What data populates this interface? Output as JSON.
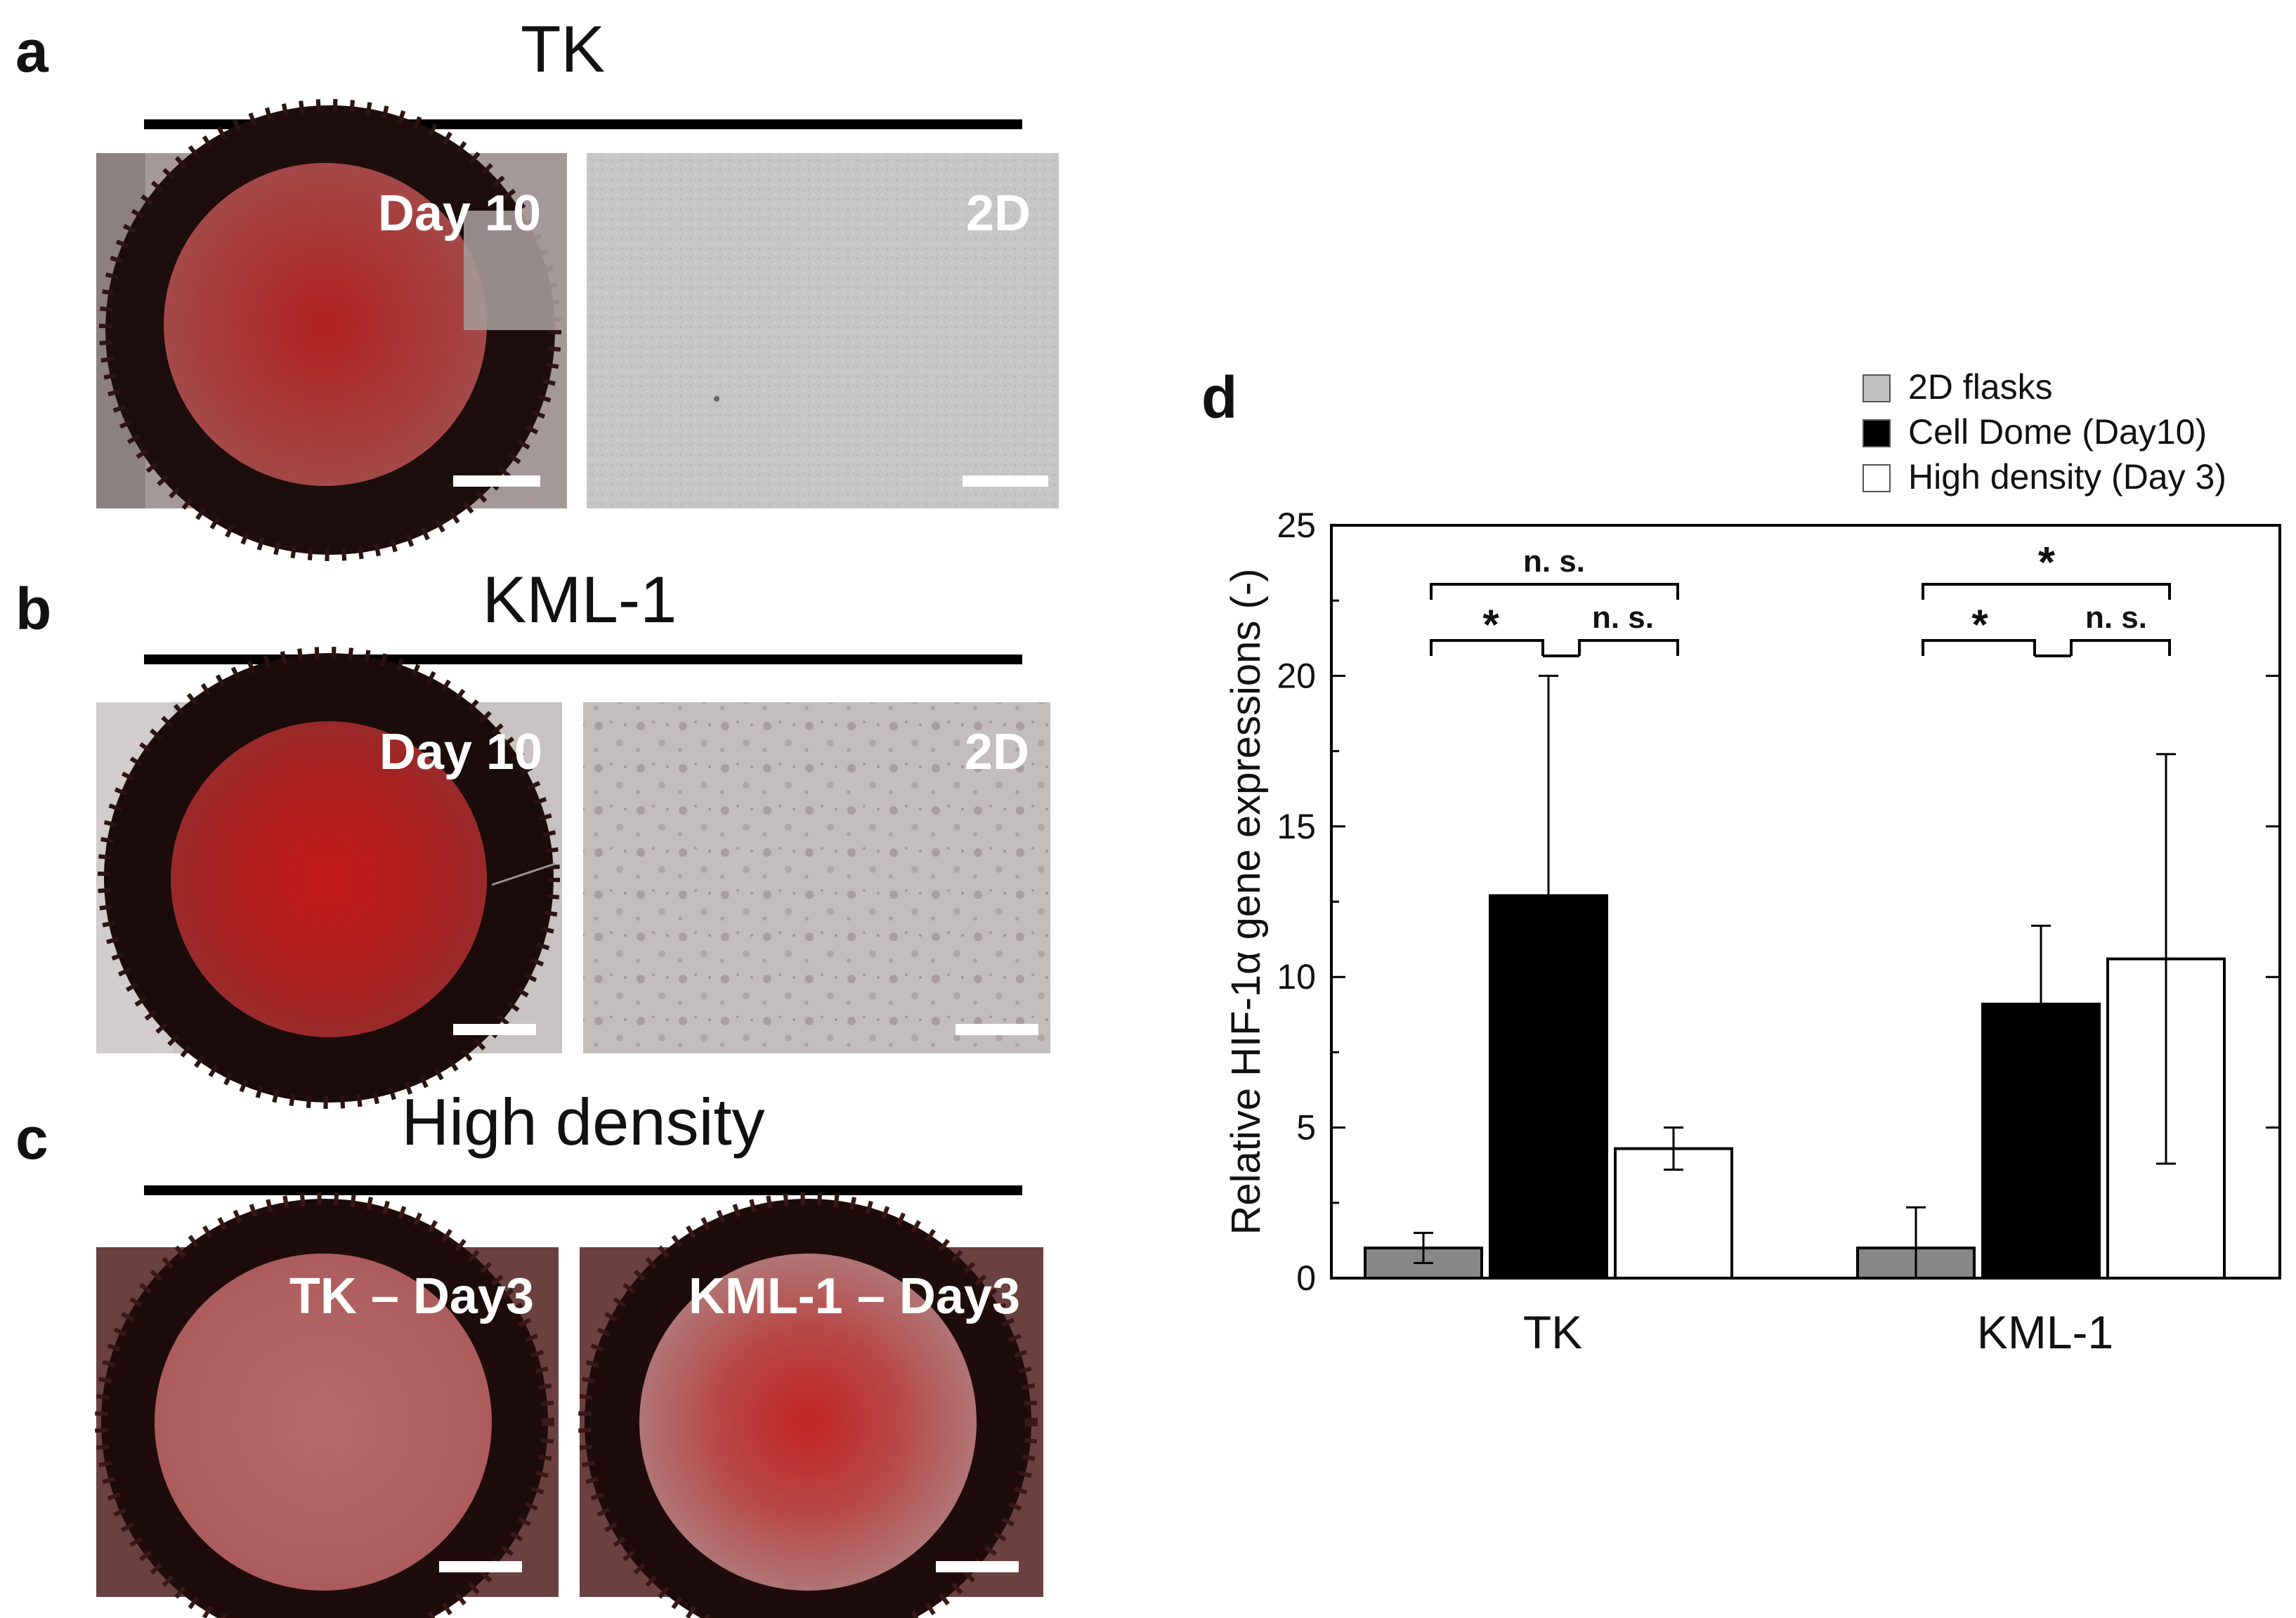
{
  "panels": {
    "a": {
      "label": "a",
      "title": "TK",
      "left_tag": "Day 10",
      "right_tag": "2D"
    },
    "b": {
      "label": "b",
      "title": "KML-1",
      "left_tag": "Day 10",
      "right_tag": "2D"
    },
    "c": {
      "label": "c",
      "title": "High density",
      "left_tag": "TK – Day3",
      "right_tag": "KML-1 – Day3"
    },
    "d": {
      "label": "d"
    }
  },
  "colors": {
    "bg_dark": "#170b0b",
    "red_bright": "#c42020",
    "red_pale": "#b97070",
    "gray_2d": "#c8c8c8",
    "gray_2d_kml": "#c2bcbd",
    "bar_2d": "#888888",
    "bar_dome": "#000000",
    "bar_hd": "#ffffff"
  },
  "chart_data": {
    "type": "bar",
    "categories": [
      "TK",
      "KML-1"
    ],
    "ylabel": "Relative HIF-1α gene expressions (-)",
    "ylim": [
      0,
      25
    ],
    "yticks": [
      0,
      5,
      10,
      15,
      20,
      25
    ],
    "series": [
      {
        "name": "2D flasks",
        "values": [
          1.0,
          1.0
        ],
        "errors": [
          0.5,
          1.35
        ],
        "color": "#888888"
      },
      {
        "name": "Cell Dome (Day10)",
        "values": [
          12.7,
          9.1
        ],
        "errors": [
          7.3,
          2.6
        ],
        "color": "#000000"
      },
      {
        "name": "High density (Day 3)",
        "values": [
          4.3,
          10.6
        ],
        "errors": [
          0.7,
          6.8
        ],
        "color": "#ffffff"
      }
    ],
    "legend_position": "top-right",
    "legend": [
      "2D flasks",
      "Cell Dome (Day10)",
      "High density (Day 3)"
    ],
    "significance": {
      "tk_top": "n. s.",
      "tk_left": "*",
      "tk_right": "n. s.",
      "kml_top": "*",
      "kml_left": "*",
      "kml_right": "n. s."
    }
  }
}
